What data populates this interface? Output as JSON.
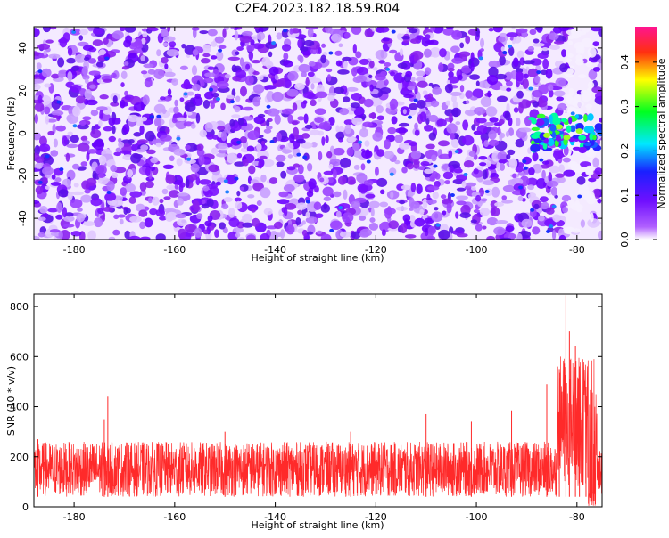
{
  "chart_data": [
    {
      "type": "heatmap",
      "title": "C2E4.2023.182.18.59.R04",
      "xlabel": "Height of straight line (km)",
      "ylabel": "Frequency (Hz)",
      "xlim": [
        -188,
        -75
      ],
      "ylim": [
        -50,
        50
      ],
      "x_ticks": [
        "-180",
        "-160",
        "-140",
        "-120",
        "-100",
        "-80"
      ],
      "y_ticks": [
        "-40",
        "-20",
        "0",
        "20",
        "40"
      ],
      "colorbar": {
        "label": "Normalized spectral amplitude",
        "range": [
          0,
          0.48
        ],
        "ticks": [
          "0.0",
          "0.1",
          "0.2",
          "0.3",
          "0.4"
        ],
        "colormap": [
          "#ffffff",
          "#9b30ff",
          "#2a20ff",
          "#00e0ff",
          "#00ff00",
          "#ffff00",
          "#ff2020",
          "#ff1493"
        ]
      },
      "hotspot": {
        "x_range": [
          -89,
          -75
        ],
        "y_range": [
          -8,
          8
        ],
        "peak_value": 0.3
      }
    },
    {
      "type": "line",
      "xlabel": "Height of straight line (km)",
      "ylabel": "SNR (10 * v/v)",
      "xlim": [
        -188,
        -75
      ],
      "ylim": [
        0,
        850
      ],
      "x_ticks": [
        "-180",
        "-160",
        "-140",
        "-120",
        "-100",
        "-80"
      ],
      "y_ticks": [
        "0",
        "200",
        "400",
        "600",
        "800"
      ],
      "color": "#ff2a2a",
      "baseline_band": [
        40,
        260
      ],
      "spikes": [
        {
          "x": -187.2,
          "y": 270
        },
        {
          "x": -174,
          "y": 350
        },
        {
          "x": -173.3,
          "y": 440
        },
        {
          "x": -150,
          "y": 300
        },
        {
          "x": -125,
          "y": 300
        },
        {
          "x": -110,
          "y": 370
        },
        {
          "x": -101,
          "y": 340
        },
        {
          "x": -93,
          "y": 385
        },
        {
          "x": -86,
          "y": 490
        },
        {
          "x": -83.5,
          "y": 550
        },
        {
          "x": -82.2,
          "y": 845
        },
        {
          "x": -81.5,
          "y": 700
        },
        {
          "x": -80.3,
          "y": 640
        },
        {
          "x": -79.5,
          "y": 560
        },
        {
          "x": -78.2,
          "y": 480
        }
      ]
    }
  ]
}
